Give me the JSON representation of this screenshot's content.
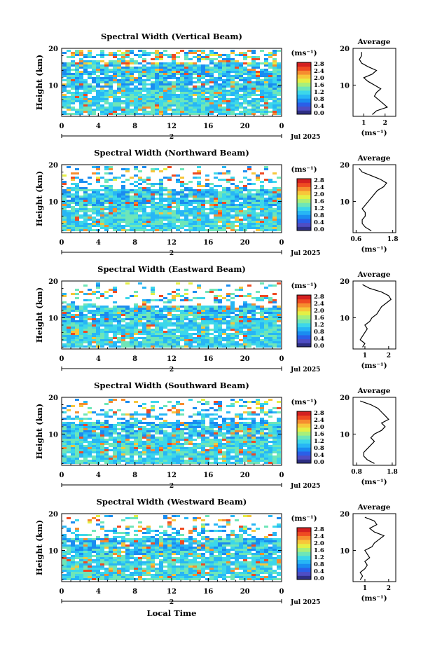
{
  "figure": {
    "month_label": "Jul 2025",
    "date_label": "2",
    "xlabel": "Local Time",
    "ylabel": "Height (km)",
    "cb_unit": "(ms⁻¹)",
    "avg_title": "Average",
    "avg_unit": "(ms⁻¹)",
    "colorbar_colors": [
      "#2e2f84",
      "#4f4ec4",
      "#2a5fe8",
      "#1a8cf0",
      "#27b6f5",
      "#3cd7ea",
      "#6ee6b8",
      "#a8ef7a",
      "#e4ef45",
      "#f7c63a",
      "#f68d2f",
      "#ef4a22",
      "#d42020"
    ]
  },
  "chart_data": [
    {
      "type": "heatmap",
      "title": "Spectral Width (Vertical Beam)",
      "x_ticks": [
        "0",
        "4",
        "8",
        "12",
        "16",
        "20",
        "0"
      ],
      "y_ticks": [
        "20",
        "10"
      ],
      "xlim": [
        0,
        24
      ],
      "ylim": [
        1.5,
        20
      ],
      "colorbar_ticks": [
        "2.8",
        "2.4",
        "2.0",
        "1.6",
        "1.2",
        "0.8",
        "0.4",
        "0.0"
      ],
      "colorbar_range": [
        0,
        2.8
      ],
      "average": {
        "x_ticks": [
          "1",
          "2"
        ],
        "xlim": [
          0.5,
          2.5
        ],
        "height": [
          2,
          3,
          4,
          5,
          6,
          7,
          8,
          9,
          10,
          11,
          12,
          13,
          14,
          15,
          16,
          17,
          18,
          19
        ],
        "width": [
          1.4,
          1.6,
          2.1,
          1.9,
          1.7,
          1.5,
          1.6,
          1.8,
          1.5,
          1.2,
          1.0,
          1.4,
          1.6,
          1.2,
          0.9,
          0.8,
          0.9,
          0.9
        ]
      }
    },
    {
      "type": "heatmap",
      "title": "Spectral Width (Northward Beam)",
      "x_ticks": [
        "0",
        "4",
        "8",
        "12",
        "16",
        "20",
        "0"
      ],
      "y_ticks": [
        "20",
        "10"
      ],
      "xlim": [
        0,
        24
      ],
      "ylim": [
        1.5,
        20
      ],
      "colorbar_ticks": [
        "2.8",
        "2.4",
        "2.0",
        "1.6",
        "1.2",
        "0.8",
        "0.4",
        "0.0"
      ],
      "colorbar_range": [
        0,
        2.8
      ],
      "average": {
        "x_ticks": [
          "0.6",
          "1.8"
        ],
        "xlim": [
          0.5,
          1.9
        ],
        "height": [
          2,
          3,
          4,
          5,
          6,
          7,
          8,
          9,
          10,
          11,
          12,
          13,
          14,
          15,
          16,
          17,
          18,
          19
        ],
        "width": [
          1.1,
          0.9,
          0.8,
          0.8,
          0.9,
          0.9,
          0.8,
          0.9,
          1.0,
          1.1,
          1.2,
          1.3,
          1.5,
          1.6,
          1.4,
          1.1,
          0.8,
          0.7
        ]
      }
    },
    {
      "type": "heatmap",
      "title": "Spectral Width (Eastward Beam)",
      "x_ticks": [
        "0",
        "4",
        "8",
        "12",
        "16",
        "20",
        "0"
      ],
      "y_ticks": [
        "20",
        "10"
      ],
      "xlim": [
        0,
        24
      ],
      "ylim": [
        1.5,
        20
      ],
      "colorbar_ticks": [
        "2.8",
        "2.4",
        "2.0",
        "1.6",
        "1.2",
        "0.8",
        "0.4",
        "0.0"
      ],
      "colorbar_range": [
        0,
        2.8
      ],
      "average": {
        "x_ticks": [
          "1",
          "2"
        ],
        "xlim": [
          0.5,
          2.3
        ],
        "height": [
          2,
          3,
          4,
          5,
          6,
          7,
          8,
          9,
          10,
          11,
          12,
          13,
          14,
          15,
          16,
          17,
          18,
          19
        ],
        "width": [
          0.9,
          1.0,
          0.8,
          0.9,
          1.0,
          1.1,
          1.0,
          1.2,
          1.3,
          1.5,
          1.6,
          1.7,
          1.9,
          2.1,
          2.0,
          1.7,
          1.2,
          0.9
        ]
      }
    },
    {
      "type": "heatmap",
      "title": "Spectral Width (Southward Beam)",
      "x_ticks": [
        "0",
        "4",
        "8",
        "12",
        "16",
        "20",
        "0"
      ],
      "y_ticks": [
        "20",
        "10"
      ],
      "xlim": [
        0,
        24
      ],
      "ylim": [
        1.5,
        20
      ],
      "colorbar_ticks": [
        "2.8",
        "2.4",
        "2.0",
        "1.6",
        "1.2",
        "0.8",
        "0.4",
        "0.0"
      ],
      "colorbar_range": [
        0,
        2.8
      ],
      "average": {
        "x_ticks": [
          "0.8",
          "1.8"
        ],
        "xlim": [
          0.7,
          1.9
        ],
        "height": [
          2,
          3,
          4,
          5,
          6,
          7,
          8,
          9,
          10,
          11,
          12,
          13,
          14,
          15,
          16,
          17,
          18,
          19
        ],
        "width": [
          1.3,
          1.1,
          1.0,
          1.0,
          1.1,
          1.2,
          1.3,
          1.2,
          1.3,
          1.5,
          1.6,
          1.5,
          1.7,
          1.6,
          1.5,
          1.4,
          1.2,
          0.9
        ]
      }
    },
    {
      "type": "heatmap",
      "title": "Spectral Width (Westward Beam)",
      "x_ticks": [
        "0",
        "4",
        "8",
        "12",
        "16",
        "20",
        "0"
      ],
      "y_ticks": [
        "20",
        "10"
      ],
      "xlim": [
        0,
        24
      ],
      "ylim": [
        1.5,
        20
      ],
      "colorbar_ticks": [
        "2.8",
        "2.4",
        "2.0",
        "1.6",
        "1.2",
        "0.8",
        "0.4",
        "0.0"
      ],
      "colorbar_range": [
        0,
        2.8
      ],
      "average": {
        "x_ticks": [
          "1",
          "2"
        ],
        "xlim": [
          0.5,
          2.3
        ],
        "height": [
          2,
          3,
          4,
          5,
          6,
          7,
          8,
          9,
          10,
          11,
          12,
          13,
          14,
          15,
          16,
          17,
          18,
          19
        ],
        "width": [
          0.8,
          0.9,
          0.8,
          1.0,
          1.1,
          1.0,
          1.2,
          1.1,
          1.0,
          1.3,
          1.4,
          1.6,
          1.8,
          1.4,
          1.2,
          1.5,
          1.4,
          1.0
        ]
      }
    }
  ]
}
